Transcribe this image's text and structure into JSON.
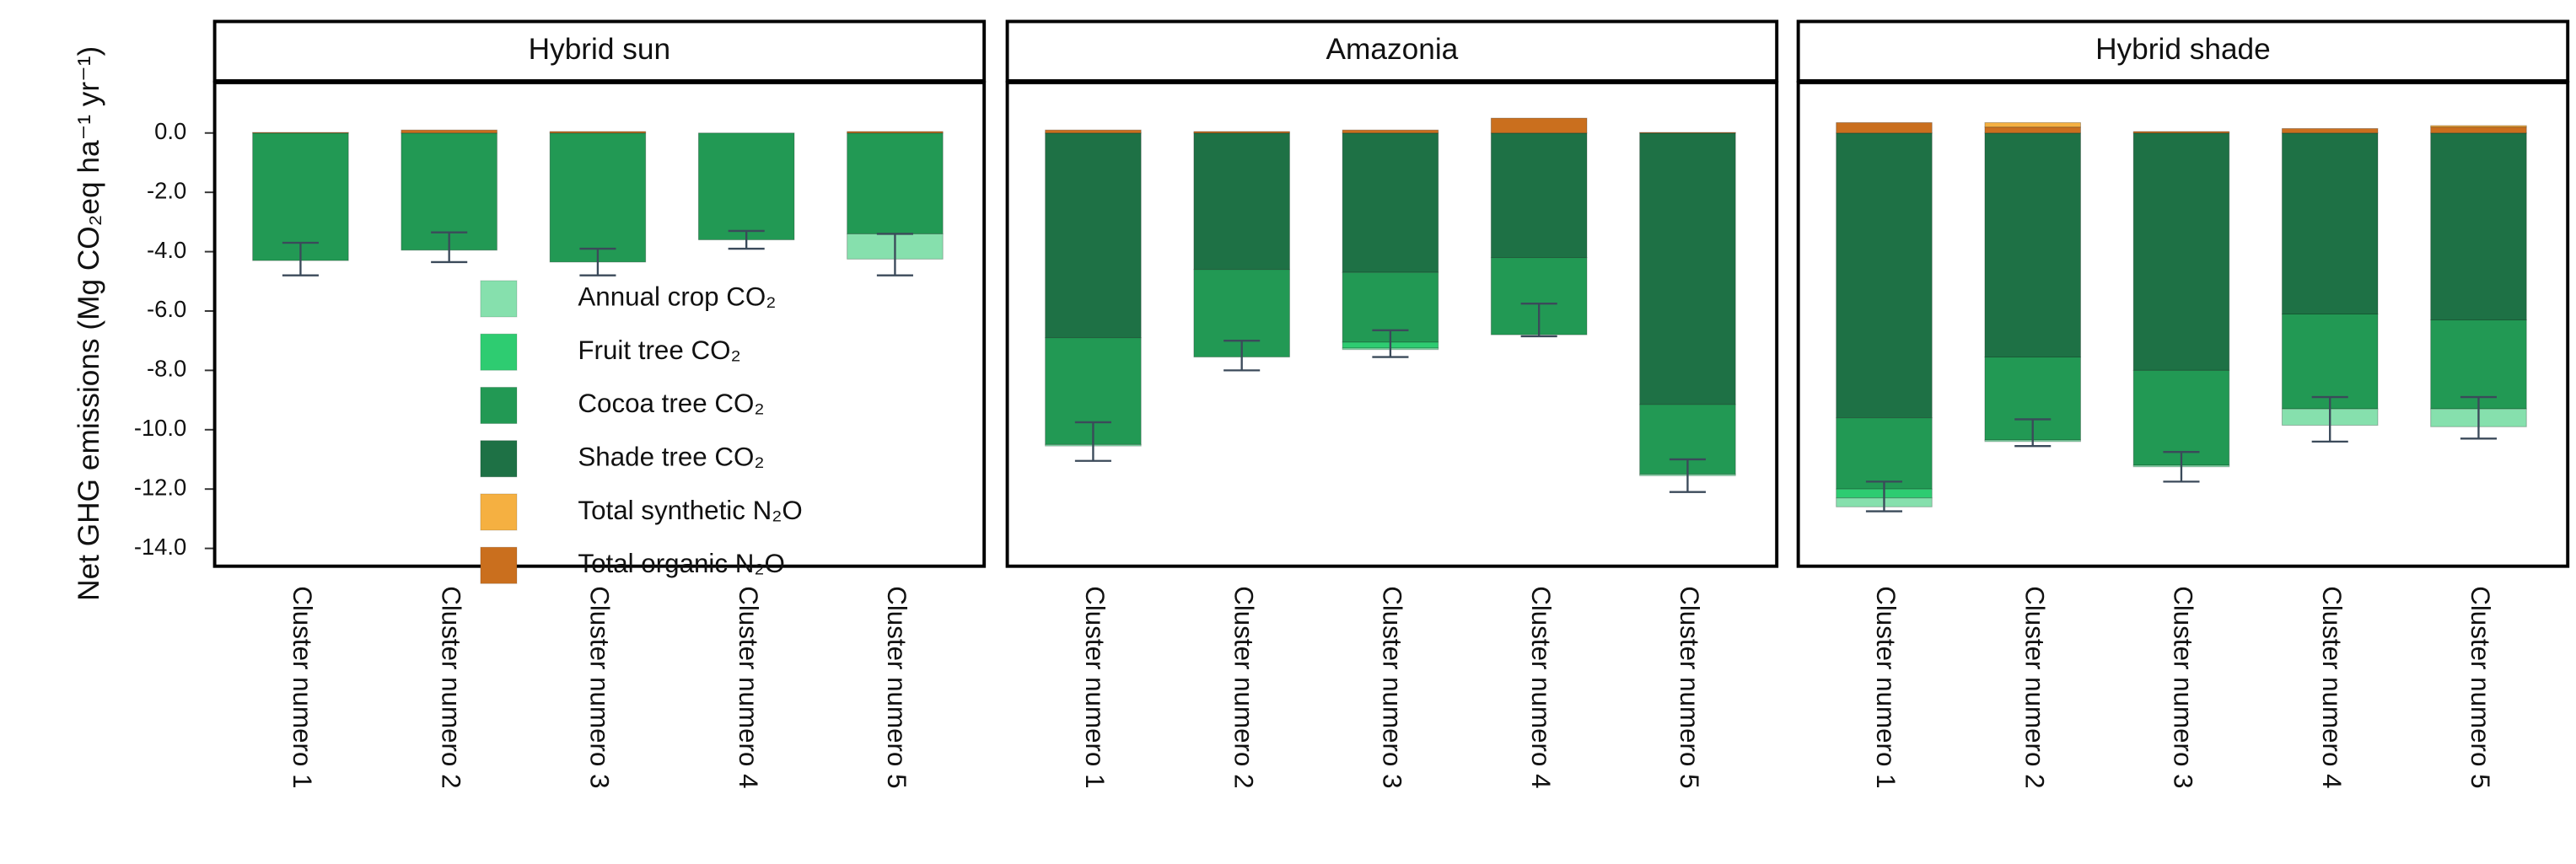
{
  "chart_data": {
    "type": "bar",
    "stacked": true,
    "ylabel": "Net GHG emissions (Mg  CO₂eq ha⁻¹ yr⁻¹)",
    "ylim": [
      -14.6,
      1.7
    ],
    "yticks": [
      {
        "value": 0,
        "label": "0.0"
      },
      {
        "value": -2,
        "label": "-2.0"
      },
      {
        "value": -4,
        "label": "-4.0"
      },
      {
        "value": -6,
        "label": "-6.0"
      },
      {
        "value": -8,
        "label": "-8.0"
      },
      {
        "value": -10,
        "label": "-10.0"
      },
      {
        "value": -12,
        "label": "-12.0"
      },
      {
        "value": -14,
        "label": "-14.0"
      }
    ],
    "legend": "inside",
    "series": [
      {
        "name": "Annual crop CO₂",
        "color": "#86e0ad",
        "values": [
          [
            0,
            0,
            0,
            0,
            -0.85
          ],
          [
            -0.05,
            0,
            -0.05,
            0,
            -0.05
          ],
          [
            -0.3,
            -0.05,
            -0.05,
            -0.55,
            -0.6
          ]
        ]
      },
      {
        "name": "Fruit tree CO₂",
        "color": "#2ecc71",
        "values": [
          [
            0,
            0,
            0,
            0,
            0
          ],
          [
            0,
            0,
            -0.2,
            0,
            0
          ],
          [
            -0.3,
            0,
            0,
            0,
            0
          ]
        ]
      },
      {
        "name": "Cocoa tree CO₂",
        "color": "#229954",
        "values": [
          [
            -4.3,
            -3.95,
            -4.35,
            -3.6,
            -3.4
          ],
          [
            -3.6,
            -2.95,
            -2.35,
            -2.6,
            -2.35
          ],
          [
            -2.4,
            -2.8,
            -3.2,
            -3.2,
            -3.0
          ]
        ]
      },
      {
        "name": "Shade tree CO₂",
        "color": "#1e7145",
        "values": [
          [
            0,
            0,
            0,
            0,
            0
          ],
          [
            -6.9,
            -4.6,
            -4.7,
            -4.2,
            -9.15
          ],
          [
            -9.6,
            -7.55,
            -8.0,
            -6.1,
            -6.3
          ]
        ]
      },
      {
        "name": "Total synthetic N₂O",
        "color": "#f5b041",
        "values": [
          [
            0,
            0,
            0,
            0,
            0
          ],
          [
            0,
            0,
            0,
            0,
            0
          ],
          [
            0,
            0.15,
            0,
            0,
            0.05
          ]
        ]
      },
      {
        "name": "Total organic  N₂O",
        "color": "#ca6f1e",
        "values": [
          [
            0.02,
            0.1,
            0.05,
            0,
            0.05
          ],
          [
            0.1,
            0.05,
            0.1,
            0.5,
            0.02
          ],
          [
            0.35,
            0.2,
            0.05,
            0.15,
            0.2
          ]
        ]
      }
    ],
    "facets": [
      {
        "title": "Hybrid sun",
        "categories": [
          "Cluster numero 1",
          "Cluster numero 2",
          "Cluster numero 3",
          "Cluster numero 4",
          "Cluster numero 5"
        ],
        "mean": [
          -4.25,
          -3.85,
          -4.35,
          -3.6,
          -4.1
        ],
        "error": [
          0.55,
          0.5,
          0.45,
          0.3,
          0.7
        ]
      },
      {
        "title": "Amazonia",
        "categories": [
          "Cluster numero 1",
          "Cluster numero 2",
          "Cluster numero 3",
          "Cluster numero 4",
          "Cluster numero 5"
        ],
        "mean": [
          -10.4,
          -7.5,
          -7.1,
          -6.3,
          -11.55
        ],
        "error": [
          0.65,
          0.5,
          0.45,
          0.55,
          0.55
        ]
      },
      {
        "title": "Hybrid shade",
        "categories": [
          "Cluster numero 1",
          "Cluster numero 2",
          "Cluster numero 3",
          "Cluster numero 4",
          "Cluster numero 5"
        ],
        "mean": [
          -12.25,
          -10.1,
          -11.25,
          -9.65,
          -9.6
        ],
        "error": [
          0.5,
          0.45,
          0.5,
          0.75,
          0.7
        ]
      }
    ]
  }
}
